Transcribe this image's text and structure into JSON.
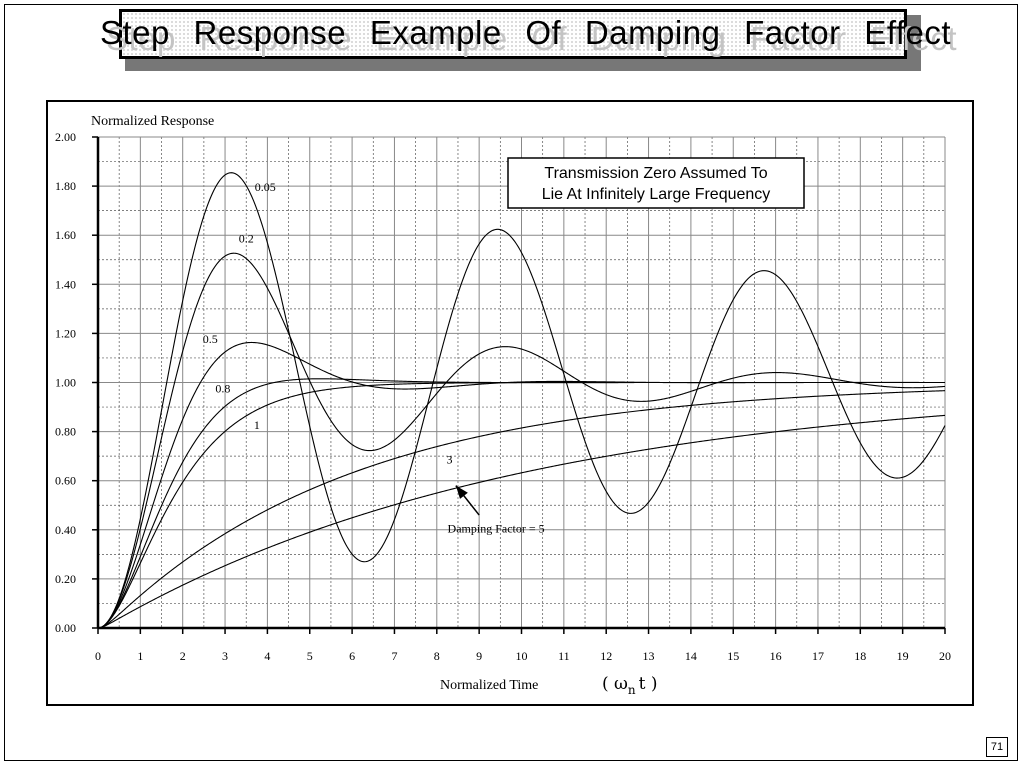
{
  "slide": {
    "title": "Step Response Example Of Damping Factor Effect",
    "page_number": "71"
  },
  "chart_data": {
    "type": "line",
    "ylabel": "Normalized  Response",
    "xlabel": "Normalized  Time",
    "xlabel_symbol": "( ω",
    "xlabel_sub": "n",
    "xlabel_tail": "t )",
    "xlim": [
      0,
      20
    ],
    "ylim": [
      0,
      2
    ],
    "x_ticks": [
      "0",
      "1",
      "2",
      "3",
      "4",
      "5",
      "6",
      "7",
      "8",
      "9",
      "10",
      "11",
      "12",
      "13",
      "14",
      "15",
      "16",
      "17",
      "18",
      "19",
      "20"
    ],
    "y_ticks": [
      "0.00",
      "0.20",
      "0.40",
      "0.60",
      "0.80",
      "1.00",
      "1.20",
      "1.40",
      "1.60",
      "1.80",
      "2.00"
    ],
    "grid": true,
    "annotation": {
      "line1": "Transmission Zero Assumed To",
      "line2": "Lie At Infinitely Large Frequency"
    },
    "series": [
      {
        "name": "0.05",
        "zeta": 0.05,
        "peak": [
          3.15,
          1.85
        ],
        "label_at": [
          3.95,
          1.78
        ]
      },
      {
        "name": "0.2",
        "zeta": 0.2,
        "peak": [
          3.2,
          1.53
        ],
        "label_at": [
          3.5,
          1.57
        ]
      },
      {
        "name": "0.5",
        "zeta": 0.5,
        "peak": [
          3.6,
          1.16
        ],
        "label_at": [
          2.65,
          1.16
        ]
      },
      {
        "name": "0.8",
        "zeta": 0.8,
        "peak": [
          5.2,
          1.01
        ],
        "label_at": [
          2.95,
          0.96
        ]
      },
      {
        "name": "1",
        "zeta": 1.0,
        "peak": [
          20,
          1.0
        ],
        "label_at": [
          3.75,
          0.81
        ]
      },
      {
        "name": "3",
        "zeta": 3.0,
        "peak": [
          20,
          0.96
        ],
        "label_at": [
          8.3,
          0.67
        ]
      },
      {
        "name": "Damping Factor = 5",
        "zeta": 5.0,
        "peak": [
          20,
          0.87
        ],
        "label_at": [
          9.4,
          0.39
        ]
      }
    ],
    "arrow": {
      "from": [
        9.0,
        0.46
      ],
      "to": [
        8.45,
        0.58
      ]
    }
  }
}
